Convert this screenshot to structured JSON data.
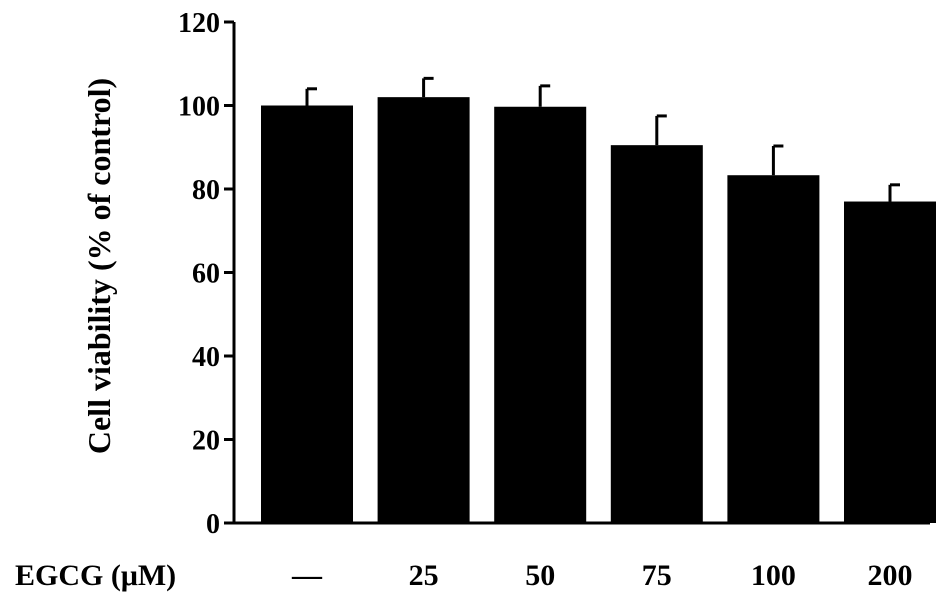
{
  "chart_data": {
    "type": "bar",
    "title": "",
    "ylabel": "Cell viability (% of control)",
    "xlabel": "EGCG (μM)",
    "categories": [
      "—",
      "25",
      "50",
      "75",
      "100",
      "200"
    ],
    "values": [
      100,
      102,
      99.7,
      90.5,
      83.3,
      77
    ],
    "errors": [
      4,
      4.5,
      5,
      7,
      7,
      4
    ],
    "ylim": [
      0,
      120
    ],
    "yticks": [
      "0",
      "20",
      "40",
      "60",
      "80",
      "100",
      "120"
    ],
    "grid": false,
    "legend": "none",
    "bar_color": "#000000"
  }
}
